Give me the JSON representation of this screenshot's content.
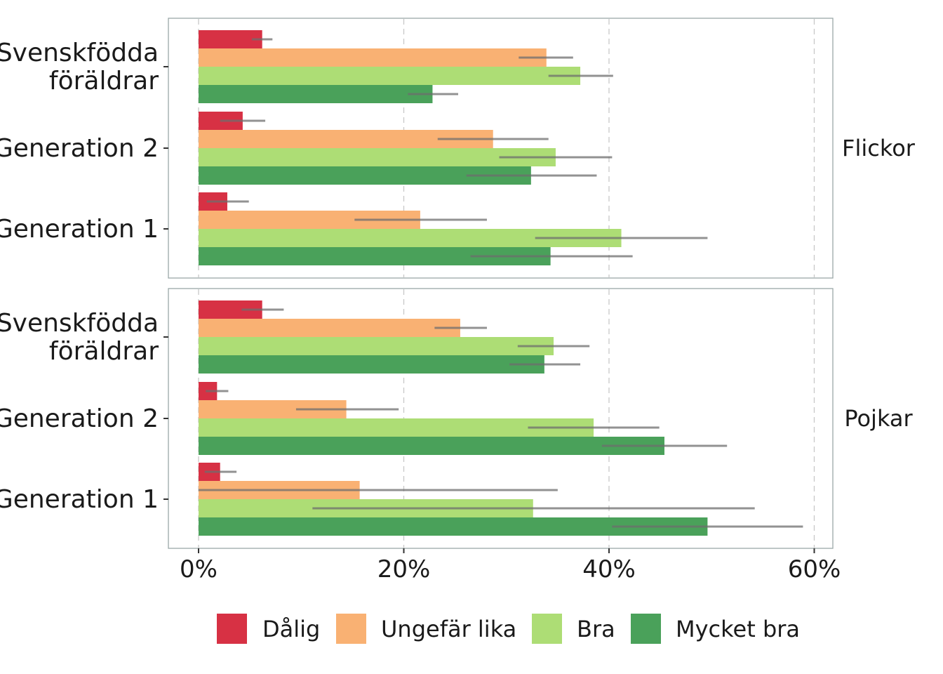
{
  "chart_data": {
    "type": "bar",
    "orientation": "horizontal",
    "facets": [
      {
        "label": "Flickor",
        "groups": [
          {
            "category": "Svenskfödda föräldrar",
            "label_lines": [
              "Svenskfödda",
              "föräldrar"
            ],
            "values": [
              6.2,
              33.9,
              37.2,
              22.8
            ],
            "errors": [
              [
                5.2,
                7.2
              ],
              [
                31.2,
                36.5
              ],
              [
                34.1,
                40.4
              ],
              [
                20.4,
                25.3
              ]
            ]
          },
          {
            "category": "Generation 2",
            "label_lines": [
              "Generation 2"
            ],
            "values": [
              4.3,
              28.7,
              34.8,
              32.4
            ],
            "errors": [
              [
                2.1,
                6.5
              ],
              [
                23.3,
                34.1
              ],
              [
                29.3,
                40.3
              ],
              [
                26.1,
                38.8
              ]
            ]
          },
          {
            "category": "Generation 1",
            "label_lines": [
              "Generation 1"
            ],
            "values": [
              2.8,
              21.6,
              41.2,
              34.3
            ],
            "errors": [
              [
                0.8,
                4.9
              ],
              [
                15.2,
                28.1
              ],
              [
                32.8,
                49.6
              ],
              [
                26.5,
                42.3
              ]
            ]
          }
        ]
      },
      {
        "label": "Pojkar",
        "groups": [
          {
            "category": "Svenskfödda föräldrar",
            "label_lines": [
              "Svenskfödda",
              "föräldrar"
            ],
            "values": [
              6.2,
              25.5,
              34.6,
              33.7
            ],
            "errors": [
              [
                4.2,
                8.3
              ],
              [
                23.0,
                28.1
              ],
              [
                31.1,
                38.1
              ],
              [
                30.3,
                37.2
              ]
            ]
          },
          {
            "category": "Generation 2",
            "label_lines": [
              "Generation 2"
            ],
            "values": [
              1.8,
              14.4,
              38.5,
              45.4
            ],
            "errors": [
              [
                0.7,
                2.9
              ],
              [
                9.5,
                19.5
              ],
              [
                32.1,
                44.9
              ],
              [
                39.3,
                51.5
              ]
            ]
          },
          {
            "category": "Generation 1",
            "label_lines": [
              "Generation 1"
            ],
            "values": [
              2.1,
              15.7,
              32.6,
              49.6
            ],
            "errors": [
              [
                0.6,
                3.7
              ],
              [
                0,
                35.0
              ],
              [
                11.1,
                54.2
              ],
              [
                40.3,
                58.9
              ]
            ]
          }
        ]
      }
    ],
    "series": [
      {
        "name": "Dålig",
        "color": "#d73144"
      },
      {
        "name": "Ungefär lika",
        "color": "#f9b173"
      },
      {
        "name": "Bra",
        "color": "#addd75"
      },
      {
        "name": "Mycket bra",
        "color": "#4aa15a"
      }
    ],
    "xlim": [
      -3,
      61.5
    ],
    "xticks": [
      0,
      20,
      40,
      60
    ],
    "xtick_labels": [
      "0%",
      "20%",
      "40%",
      "60%"
    ],
    "grid": "vertical dashed",
    "legend_position": "bottom"
  }
}
